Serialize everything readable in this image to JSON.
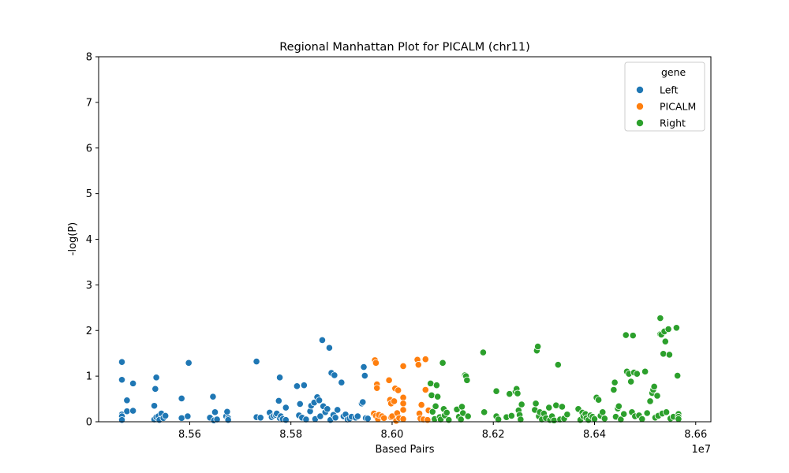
{
  "chart_data": {
    "type": "scatter",
    "title": "Regional Manhattan Plot for PICALM (chr11)",
    "xlabel": "Based Pairs",
    "ylabel": "-log(P)",
    "x_offset_label": "1e7",
    "xlim": [
      85.42,
      86.63
    ],
    "ylim": [
      0,
      8
    ],
    "x_ticks": [
      85.6,
      85.8,
      86.0,
      86.2,
      86.4,
      86.6
    ],
    "x_tick_labels": [
      "8.56",
      "8.58",
      "8.60",
      "8.62",
      "8.64",
      "8.66"
    ],
    "y_ticks": [
      0,
      1,
      2,
      3,
      4,
      5,
      6,
      7,
      8
    ],
    "y_tick_labels": [
      "0",
      "1",
      "2",
      "3",
      "4",
      "5",
      "6",
      "7",
      "8"
    ],
    "grid": false,
    "legend": {
      "title": "gene",
      "placement": "top-right"
    },
    "series": [
      {
        "name": "Left",
        "color": "#1f77b4",
        "points": [
          [
            85.466,
            1.31
          ],
          [
            85.466,
            0.92
          ],
          [
            85.466,
            0.16
          ],
          [
            85.466,
            0.12
          ],
          [
            85.466,
            0.04
          ],
          [
            85.476,
            0.47
          ],
          [
            85.476,
            0.23
          ],
          [
            85.488,
            0.84
          ],
          [
            85.488,
            0.24
          ],
          [
            85.53,
            0.35
          ],
          [
            85.532,
            0.72
          ],
          [
            85.534,
            0.97
          ],
          [
            85.53,
            0.05
          ],
          [
            85.534,
            0.1
          ],
          [
            85.538,
            0.12
          ],
          [
            85.54,
            0.04
          ],
          [
            85.544,
            0.18
          ],
          [
            85.548,
            0.08
          ],
          [
            85.552,
            0.13
          ],
          [
            85.584,
            0.51
          ],
          [
            85.584,
            0.08
          ],
          [
            85.598,
            1.29
          ],
          [
            85.596,
            0.12
          ],
          [
            85.64,
            0.09
          ],
          [
            85.646,
            0.55
          ],
          [
            85.648,
            0.03
          ],
          [
            85.65,
            0.21
          ],
          [
            85.654,
            0.05
          ],
          [
            85.672,
            0.12
          ],
          [
            85.674,
            0.22
          ],
          [
            85.676,
            0.08
          ],
          [
            85.676,
            0.04
          ],
          [
            85.732,
            1.32
          ],
          [
            85.732,
            0.1
          ],
          [
            85.74,
            0.09
          ],
          [
            85.758,
            0.2
          ],
          [
            85.762,
            0.1
          ],
          [
            85.766,
            0.13
          ],
          [
            85.77,
            0.15
          ],
          [
            85.772,
            0.18
          ],
          [
            85.776,
            0.46
          ],
          [
            85.778,
            0.97
          ],
          [
            85.778,
            0.08
          ],
          [
            85.78,
            0.12
          ],
          [
            85.784,
            0.06
          ],
          [
            85.79,
            0.31
          ],
          [
            85.79,
            0.04
          ],
          [
            85.812,
            0.78
          ],
          [
            85.816,
            0.14
          ],
          [
            85.818,
            0.39
          ],
          [
            85.822,
            0.09
          ],
          [
            85.826,
            0.8
          ],
          [
            85.83,
            0.05
          ],
          [
            85.838,
            0.23
          ],
          [
            85.84,
            0.35
          ],
          [
            85.846,
            0.42
          ],
          [
            85.848,
            0.06
          ],
          [
            85.852,
            0.54
          ],
          [
            85.856,
            0.47
          ],
          [
            85.858,
            0.12
          ],
          [
            85.862,
            1.79
          ],
          [
            85.864,
            0.34
          ],
          [
            85.868,
            0.21
          ],
          [
            85.872,
            0.28
          ],
          [
            85.876,
            1.62
          ],
          [
            85.878,
            0.04
          ],
          [
            85.88,
            1.07
          ],
          [
            85.884,
            0.15
          ],
          [
            85.886,
            1.02
          ],
          [
            85.888,
            0.09
          ],
          [
            85.892,
            0.26
          ],
          [
            85.9,
            0.86
          ],
          [
            85.904,
            0.12
          ],
          [
            85.908,
            0.16
          ],
          [
            85.912,
            0.05
          ],
          [
            85.916,
            0.07
          ],
          [
            85.92,
            0.11
          ],
          [
            85.928,
            0.09
          ],
          [
            85.932,
            0.12
          ],
          [
            85.94,
            0.4
          ],
          [
            85.942,
            0.43
          ],
          [
            85.944,
            1.2
          ],
          [
            85.946,
            1.01
          ],
          [
            85.948,
            0.08
          ],
          [
            85.952,
            0.07
          ]
        ]
      },
      {
        "name": "PICALM",
        "color": "#ff7f0e",
        "points": [
          [
            85.964,
            0.18
          ],
          [
            85.966,
            1.35
          ],
          [
            85.968,
            1.29
          ],
          [
            85.968,
            0.13
          ],
          [
            85.97,
            0.82
          ],
          [
            85.97,
            0.74
          ],
          [
            85.972,
            0.06
          ],
          [
            85.974,
            0.15
          ],
          [
            85.98,
            0.12
          ],
          [
            85.984,
            0.08
          ],
          [
            85.994,
            0.91
          ],
          [
            85.996,
            0.48
          ],
          [
            85.998,
            0.4
          ],
          [
            85.998,
            0.1
          ],
          [
            86.0,
            0.12
          ],
          [
            86.004,
            0.45
          ],
          [
            86.006,
            0.73
          ],
          [
            86.008,
            0.02
          ],
          [
            86.01,
            0.19
          ],
          [
            86.012,
            0.69
          ],
          [
            86.014,
            0.08
          ],
          [
            86.022,
            1.22
          ],
          [
            86.022,
            0.53
          ],
          [
            86.022,
            0.4
          ],
          [
            86.022,
            0.26
          ],
          [
            86.022,
            0.06
          ],
          [
            86.05,
            1.36
          ],
          [
            86.052,
            1.25
          ],
          [
            86.054,
            0.18
          ],
          [
            86.056,
            0.07
          ],
          [
            86.058,
            0.37
          ],
          [
            86.062,
            0.05
          ],
          [
            86.066,
            1.37
          ],
          [
            86.066,
            0.7
          ],
          [
            86.07,
            0.04
          ],
          [
            86.072,
            0.25
          ]
        ]
      },
      {
        "name": "Right",
        "color": "#2ca02c",
        "points": [
          [
            86.076,
            0.84
          ],
          [
            86.078,
            0.58
          ],
          [
            86.08,
            0.22
          ],
          [
            86.084,
            0.06
          ],
          [
            86.086,
            0.34
          ],
          [
            86.088,
            0.8
          ],
          [
            86.09,
            0.55
          ],
          [
            86.094,
            0.1
          ],
          [
            86.096,
            0.05
          ],
          [
            86.1,
            1.29
          ],
          [
            86.102,
            0.28
          ],
          [
            86.104,
            0.14
          ],
          [
            86.108,
            0.2
          ],
          [
            86.112,
            0.04
          ],
          [
            86.128,
            0.27
          ],
          [
            86.132,
            0.11
          ],
          [
            86.136,
            0.05
          ],
          [
            86.138,
            0.33
          ],
          [
            86.14,
            0.19
          ],
          [
            86.144,
            1.02
          ],
          [
            86.146,
            1.0
          ],
          [
            86.148,
            0.91
          ],
          [
            86.15,
            0.12
          ],
          [
            86.18,
            1.52
          ],
          [
            86.182,
            0.21
          ],
          [
            86.206,
            0.67
          ],
          [
            86.206,
            0.12
          ],
          [
            86.21,
            0.05
          ],
          [
            86.226,
            0.1
          ],
          [
            86.232,
            0.61
          ],
          [
            86.236,
            0.13
          ],
          [
            86.244,
            0.66
          ],
          [
            86.246,
            0.72
          ],
          [
            86.248,
            0.62
          ],
          [
            86.25,
            0.25
          ],
          [
            86.252,
            0.15
          ],
          [
            86.254,
            0.05
          ],
          [
            86.256,
            0.38
          ],
          [
            86.282,
            0.26
          ],
          [
            86.284,
            0.4
          ],
          [
            86.286,
            1.56
          ],
          [
            86.288,
            1.65
          ],
          [
            86.29,
            0.12
          ],
          [
            86.292,
            0.21
          ],
          [
            86.296,
            0.05
          ],
          [
            86.3,
            0.18
          ],
          [
            86.304,
            0.08
          ],
          [
            86.31,
            0.31
          ],
          [
            86.312,
            0.04
          ],
          [
            86.316,
            0.12
          ],
          [
            86.32,
            0.03
          ],
          [
            86.324,
            0.36
          ],
          [
            86.328,
            1.25
          ],
          [
            86.332,
            0.05
          ],
          [
            86.336,
            0.33
          ],
          [
            86.34,
            0.07
          ],
          [
            86.346,
            0.16
          ],
          [
            86.368,
            0.28
          ],
          [
            86.372,
            0.04
          ],
          [
            86.376,
            0.2
          ],
          [
            86.378,
            0.12
          ],
          [
            86.382,
            0.17
          ],
          [
            86.384,
            0.08
          ],
          [
            86.388,
            0.04
          ],
          [
            86.392,
            0.14
          ],
          [
            86.396,
            0.11
          ],
          [
            86.4,
            0.06
          ],
          [
            86.404,
            0.53
          ],
          [
            86.408,
            0.48
          ],
          [
            86.412,
            0.13
          ],
          [
            86.416,
            0.21
          ],
          [
            86.42,
            0.07
          ],
          [
            86.438,
            0.7
          ],
          [
            86.44,
            0.86
          ],
          [
            86.442,
            0.11
          ],
          [
            86.446,
            0.29
          ],
          [
            86.448,
            0.34
          ],
          [
            86.452,
            0.05
          ],
          [
            86.458,
            0.17
          ],
          [
            86.462,
            1.9
          ],
          [
            86.464,
            1.1
          ],
          [
            86.468,
            1.05
          ],
          [
            86.472,
            0.88
          ],
          [
            86.474,
            0.21
          ],
          [
            86.476,
            1.89
          ],
          [
            86.478,
            1.08
          ],
          [
            86.48,
            0.12
          ],
          [
            86.484,
            1.05
          ],
          [
            86.488,
            0.14
          ],
          [
            86.494,
            0.06
          ],
          [
            86.5,
            1.1
          ],
          [
            86.504,
            0.19
          ],
          [
            86.51,
            0.45
          ],
          [
            86.514,
            0.63
          ],
          [
            86.516,
            0.7
          ],
          [
            86.518,
            0.77
          ],
          [
            86.52,
            0.09
          ],
          [
            86.524,
            0.57
          ],
          [
            86.526,
            0.13
          ],
          [
            86.53,
            2.27
          ],
          [
            86.53,
            1.92
          ],
          [
            86.532,
            1.91
          ],
          [
            86.534,
            0.18
          ],
          [
            86.536,
            1.49
          ],
          [
            86.538,
            1.98
          ],
          [
            86.54,
            1.76
          ],
          [
            86.542,
            0.21
          ],
          [
            86.546,
            2.03
          ],
          [
            86.548,
            1.47
          ],
          [
            86.55,
            0.07
          ],
          [
            86.556,
            0.11
          ],
          [
            86.562,
            2.06
          ],
          [
            86.564,
            1.01
          ],
          [
            86.566,
            0.17
          ],
          [
            86.566,
            0.11
          ],
          [
            86.566,
            0.06
          ]
        ]
      }
    ]
  }
}
